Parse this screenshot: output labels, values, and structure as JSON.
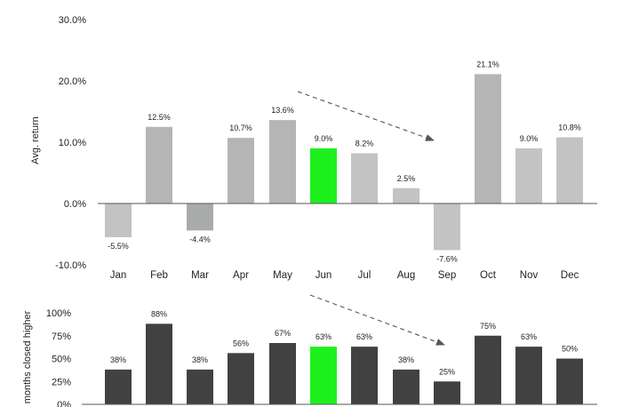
{
  "chart_data": [
    {
      "type": "bar",
      "categories": [
        "Jan",
        "Feb",
        "Mar",
        "Apr",
        "May",
        "Jun",
        "Jul",
        "Aug",
        "Sep",
        "Oct",
        "Nov",
        "Dec"
      ],
      "values": [
        -5.5,
        12.5,
        -4.4,
        10.7,
        13.6,
        9.0,
        8.2,
        2.5,
        -7.6,
        21.1,
        9.0,
        10.8
      ],
      "data_labels": [
        "-5.5%",
        "12.5%",
        "-4.4%",
        "10.7%",
        "13.6%",
        "9.0%",
        "8.2%",
        "2.5%",
        "-7.6%",
        "21.1%",
        "9.0%",
        "10.8%"
      ],
      "ylabel": "Avg. return",
      "ylim": [
        -10,
        30
      ],
      "yticks": [
        -10,
        0,
        10,
        20,
        30
      ],
      "ytick_labels": [
        "-10.0%",
        "0.0%",
        "10.0%",
        "20.0%",
        "30.0%"
      ],
      "bar_colors": [
        "#c3c3c3",
        "#b5b5b5",
        "#a8aba9",
        "#b5b5b5",
        "#b5b5b5",
        "#1ef01e",
        "#c3c3c3",
        "#c3c3c3",
        "#c3c3c3",
        "#b5b5b5",
        "#c3c3c3",
        "#c3c3c3"
      ],
      "negative_label_color": "#e0211b",
      "grid": false,
      "annotation": "dashed-arrow"
    },
    {
      "type": "bar",
      "categories": [
        "Jan",
        "Feb",
        "Mar",
        "Apr",
        "May",
        "Jun",
        "Jul",
        "Aug",
        "Sep",
        "Oct",
        "Nov",
        "Dec"
      ],
      "values": [
        38,
        88,
        38,
        56,
        67,
        63,
        63,
        38,
        25,
        75,
        63,
        50
      ],
      "data_labels": [
        "38%",
        "88%",
        "38%",
        "56%",
        "67%",
        "63%",
        "63%",
        "38%",
        "25%",
        "75%",
        "63%",
        "50%"
      ],
      "ylabel": "months closed higher",
      "ylim": [
        0,
        100
      ],
      "yticks": [
        0,
        25,
        50,
        75,
        100
      ],
      "ytick_labels": [
        "0%",
        "25%",
        "50%",
        "75%",
        "100%"
      ],
      "bar_colors": [
        "#414141",
        "#414141",
        "#414141",
        "#414141",
        "#414141",
        "#1ef01e",
        "#414141",
        "#414141",
        "#414141",
        "#414141",
        "#414141",
        "#414141"
      ],
      "grid": false,
      "annotation": "dashed-arrow"
    }
  ]
}
